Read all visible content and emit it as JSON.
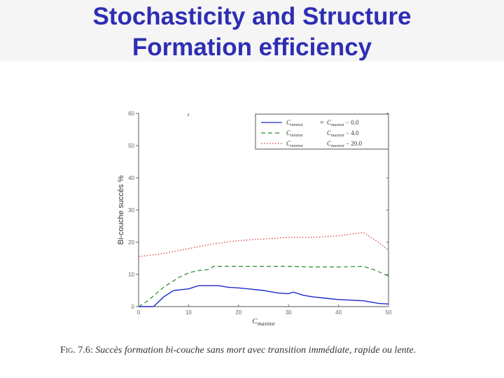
{
  "slide": {
    "title_line1": "Stochasticity and Structure",
    "title_line2": "Formation efficiency"
  },
  "caption": {
    "label": "Fig. 7.6:",
    "text": "Succès formation bi-couche sans mort avec transition immédiate, rapide ou lente."
  },
  "colors": {
    "title": "#2e2eb4",
    "series_red": "#d83030",
    "series_green": "#2a8a2a",
    "series_blue": "#1a2ad0"
  },
  "chart_data": {
    "type": "line",
    "xlabel": "C_maxinst",
    "ylabel": "Bi-couche succès %",
    "xlim": [
      0,
      50
    ],
    "ylim": [
      0,
      60
    ],
    "xticks": [
      0,
      10,
      20,
      30,
      40,
      50
    ],
    "yticks": [
      0,
      10,
      20,
      30,
      40,
      50,
      60
    ],
    "grid": false,
    "legend_position": "top-right",
    "series": [
      {
        "name": "C_mininst = C_maxinst − 0.0",
        "legend_left": "C_mininst",
        "legend_op": "=",
        "legend_right": "C_maxinst − 0.0",
        "style": "solid",
        "color": "#1a2ad0",
        "x": [
          0,
          3,
          5,
          7,
          10,
          12,
          14,
          16,
          18,
          20,
          22,
          25,
          28,
          30,
          31,
          33,
          35,
          38,
          40,
          45,
          48,
          50
        ],
        "y": [
          0,
          0,
          3,
          5,
          5.5,
          6.5,
          6.5,
          6.5,
          6,
          5.8,
          5.5,
          5,
          4.2,
          4,
          4.5,
          3.5,
          3,
          2.5,
          2.2,
          1.8,
          1,
          0.8
        ]
      },
      {
        "name": "C_mininst − C_maxinst − 4.0",
        "legend_left": "C_mininst",
        "legend_op": "",
        "legend_right": "C_maxinst − 4.0",
        "style": "dashed",
        "color": "#2a8a2a",
        "x": [
          0,
          2,
          5,
          8,
          10,
          12,
          14,
          15,
          20,
          25,
          30,
          35,
          40,
          45,
          47,
          50
        ],
        "y": [
          0,
          2,
          6,
          9,
          10.5,
          11.2,
          11.5,
          12.5,
          12.5,
          12.5,
          12.5,
          12.3,
          12.3,
          12.5,
          11.5,
          9.5
        ]
      },
      {
        "name": "C_mininst  C_maxinst − 20.0",
        "legend_left": "C_mininst",
        "legend_op": "",
        "legend_right": "C_maxinst − 20.0",
        "style": "dotted",
        "color": "#d83030",
        "x": [
          0,
          5,
          10,
          15,
          20,
          25,
          30,
          35,
          40,
          45,
          48,
          50
        ],
        "y": [
          15.5,
          16.5,
          18,
          19.5,
          20.5,
          21,
          21.5,
          21.5,
          22,
          23,
          20,
          17.5
        ]
      }
    ]
  }
}
